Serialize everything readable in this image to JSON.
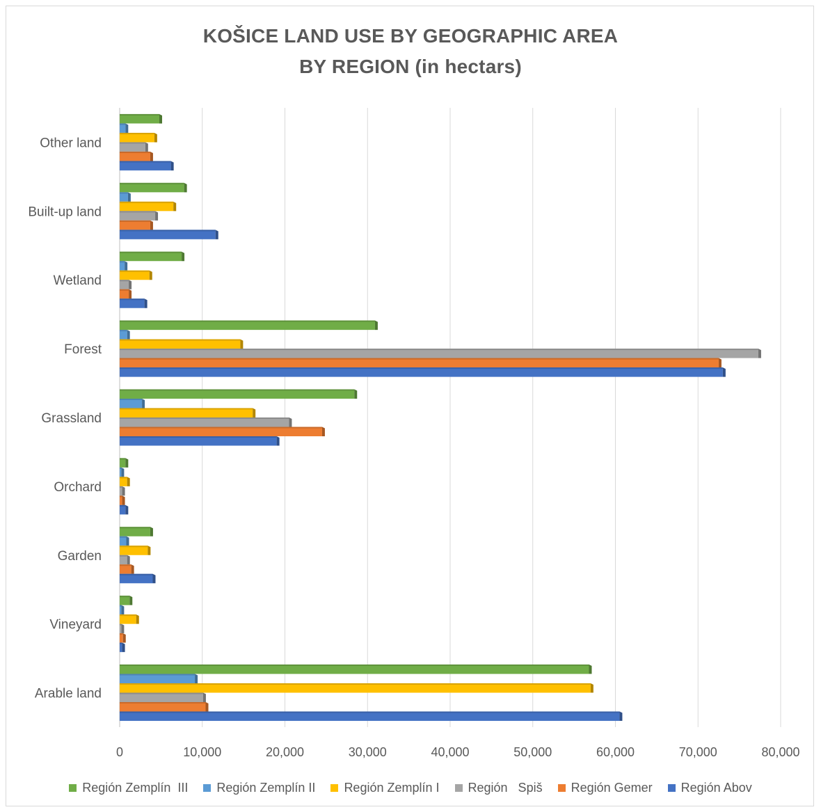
{
  "chart_data": {
    "type": "bar",
    "orientation": "horizontal",
    "title_line1": "KOŠICE LAND USE  BY GEOGRAPHIC AREA",
    "title_line2": "BY REGION (in hectars)",
    "categories": [
      "Arable land",
      "Vineyard",
      "Garden",
      "Orchard",
      "Grassland",
      "Forest",
      "Wetland",
      "Built-up land",
      "Other land"
    ],
    "xlim": [
      0,
      80000
    ],
    "xticks": [
      0,
      10000,
      20000,
      30000,
      40000,
      50000,
      60000,
      70000,
      80000
    ],
    "xtick_labels": [
      "0",
      "10,000",
      "20,000",
      "30,000",
      "40,000",
      "50,000",
      "60,000",
      "70,000",
      "80,000"
    ],
    "grid": "vertical",
    "legend_position": "bottom",
    "series": [
      {
        "name": "Región Abov",
        "color": "#4472c4",
        "values": [
          60500,
          300,
          4000,
          700,
          19000,
          73000,
          3000,
          11600,
          6200
        ]
      },
      {
        "name": "Región Gemer",
        "color": "#ed7d31",
        "values": [
          10400,
          400,
          1400,
          300,
          24500,
          72500,
          1100,
          3700,
          3700
        ]
      },
      {
        "name": "Región   Spiš",
        "color": "#a5a5a5",
        "values": [
          10100,
          200,
          900,
          300,
          20500,
          77300,
          1100,
          4300,
          3100
        ]
      },
      {
        "name": "Región Zemplín I",
        "color": "#ffc000",
        "values": [
          57000,
          2000,
          3400,
          900,
          16100,
          14600,
          3600,
          6500,
          4200
        ]
      },
      {
        "name": "Región Zemplín II",
        "color": "#5b9bd5",
        "values": [
          9100,
          200,
          800,
          200,
          2700,
          900,
          600,
          1000,
          700
        ]
      },
      {
        "name": "Región Zemplín  III",
        "color": "#70ad47",
        "values": [
          56800,
          1200,
          3700,
          700,
          28400,
          30900,
          7500,
          7800,
          4800
        ]
      }
    ]
  }
}
